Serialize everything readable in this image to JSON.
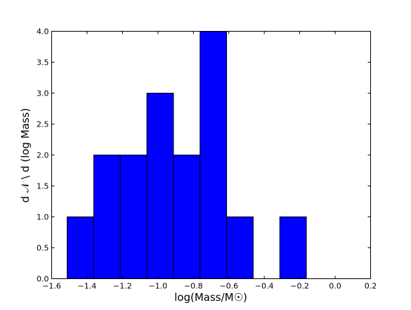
{
  "chart_data": {
    "type": "bar",
    "bins": [
      {
        "x0": -1.5125,
        "x1": -1.3625,
        "count": 1
      },
      {
        "x0": -1.3625,
        "x1": -1.2125,
        "count": 2
      },
      {
        "x0": -1.2125,
        "x1": -1.0625,
        "count": 2
      },
      {
        "x0": -1.0625,
        "x1": -0.9125,
        "count": 3
      },
      {
        "x0": -0.9125,
        "x1": -0.7625,
        "count": 2
      },
      {
        "x0": -0.7625,
        "x1": -0.6125,
        "count": 4
      },
      {
        "x0": -0.6125,
        "x1": -0.4625,
        "count": 1
      },
      {
        "x0": -0.4625,
        "x1": -0.3125,
        "count": 0
      },
      {
        "x0": -0.3125,
        "x1": -0.1625,
        "count": 1
      }
    ],
    "xlim": [
      -1.6,
      0.2
    ],
    "ylim": [
      0.0,
      4.0
    ],
    "xticks": [
      "−1.6",
      "−1.4",
      "−1.2",
      "−1.0",
      "−0.8",
      "−0.6",
      "−0.4",
      "−0.2",
      "0.0",
      "0.2"
    ],
    "xtick_values": [
      -1.6,
      -1.4,
      -1.2,
      -1.0,
      -0.8,
      -0.6,
      -0.4,
      -0.2,
      0.0,
      0.2
    ],
    "yticks": [
      "0.0",
      "0.5",
      "1.0",
      "1.5",
      "2.0",
      "2.5",
      "3.0",
      "3.5",
      "4.0"
    ],
    "ytick_values": [
      0.0,
      0.5,
      1.0,
      1.5,
      2.0,
      2.5,
      3.0,
      3.5,
      4.0
    ],
    "xlabel": "log(Mass/M☉)",
    "ylabel": "d 𝒩 \\ d (log Mass)",
    "bar_color": "#0000ff",
    "grid": false
  }
}
